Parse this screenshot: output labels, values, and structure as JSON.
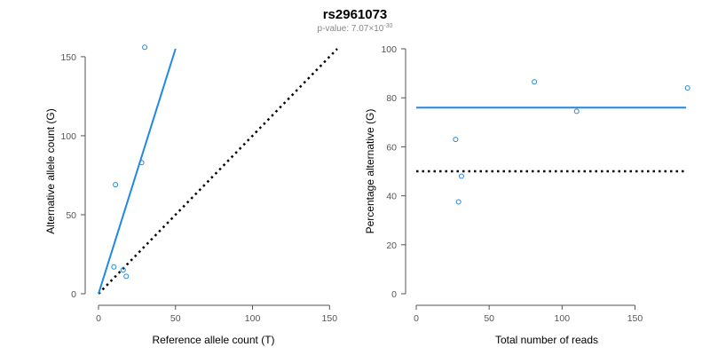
{
  "figure": {
    "title": "rs2961073",
    "subtitle_prefix": "p-value: 7.07×10",
    "subtitle_exponent": "-30"
  },
  "colors": {
    "point": "#1E88E5",
    "fit_line": "#1E88E5",
    "reference_line": "#000000",
    "axis": "#555555"
  },
  "chart_data": [
    {
      "type": "scatter",
      "xlabel": "Reference allele count (T)",
      "ylabel": "Alternative allele count (G)",
      "xlim": [
        0,
        155
      ],
      "ylim": [
        0,
        155
      ],
      "xticks": [
        0,
        50,
        100,
        150
      ],
      "yticks": [
        0,
        50,
        100,
        150
      ],
      "points": [
        {
          "x": 30,
          "y": 156
        },
        {
          "x": 28,
          "y": 83
        },
        {
          "x": 11,
          "y": 69
        },
        {
          "x": 10,
          "y": 17
        },
        {
          "x": 16,
          "y": 15
        },
        {
          "x": 18,
          "y": 11
        }
      ],
      "fit_line": {
        "style": "solid",
        "from": [
          0,
          0
        ],
        "to": [
          50,
          155
        ]
      },
      "reference_line": {
        "style": "dotted",
        "from": [
          0,
          0
        ],
        "to": [
          155,
          155
        ]
      },
      "grid": false
    },
    {
      "type": "scatter",
      "xlabel": "Total number of reads",
      "ylabel": "Percentage alternative (G)",
      "xlim": [
        0,
        185
      ],
      "ylim": [
        0,
        100
      ],
      "xticks": [
        0,
        50,
        100,
        150
      ],
      "yticks": [
        0,
        20,
        40,
        60,
        80,
        100
      ],
      "points": [
        {
          "x": 81,
          "y": 86.5
        },
        {
          "x": 186,
          "y": 84
        },
        {
          "x": 110,
          "y": 74.5
        },
        {
          "x": 27,
          "y": 63
        },
        {
          "x": 31,
          "y": 48
        },
        {
          "x": 29,
          "y": 37.5
        }
      ],
      "fit_line": {
        "style": "solid",
        "from": [
          0,
          76
        ],
        "to": [
          185,
          76
        ]
      },
      "reference_line": {
        "style": "dotted",
        "from": [
          0,
          50
        ],
        "to": [
          185,
          50
        ]
      },
      "grid": false
    }
  ]
}
